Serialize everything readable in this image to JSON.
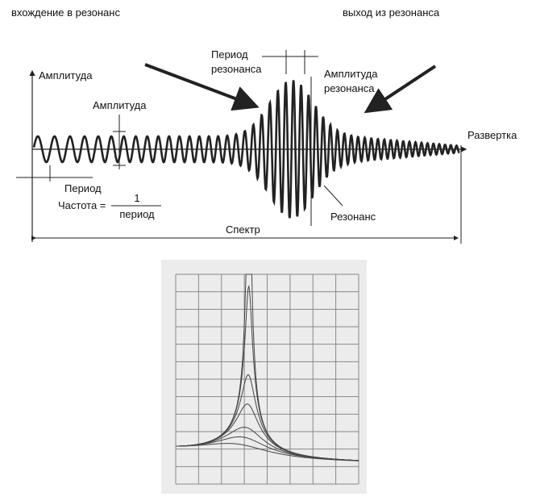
{
  "top": {
    "entering": "вхождение в резонанс",
    "exiting": "выход из резонанса",
    "axis_amplitude": "Амплитуда",
    "sweep": "Развертка",
    "amplitude": "Амплитуда",
    "period": "Период",
    "frequency": "Частота =",
    "numerator": "1",
    "denominator": "период",
    "resonance_period_1": "Период",
    "resonance_period_2": "резонанса",
    "resonance_amplitude_1": "Амплитуда",
    "resonance_amplitude_2": "резонанса",
    "resonance": "Резонанс",
    "spectrum": "Спектр"
  }
}
